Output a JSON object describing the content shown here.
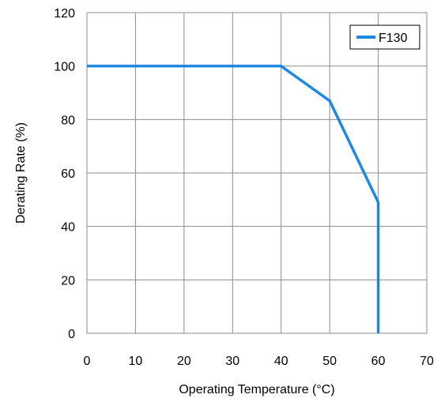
{
  "chart_data": {
    "type": "line",
    "xlabel": "Operating Temperature (°C)",
    "ylabel": "Derating Rate (%)",
    "xlim": [
      0,
      70
    ],
    "ylim": [
      0,
      120
    ],
    "x_ticks": [
      0,
      10,
      20,
      30,
      40,
      50,
      60,
      70
    ],
    "y_ticks": [
      0,
      20,
      40,
      60,
      80,
      100,
      120
    ],
    "grid": true,
    "legend_position": "top-right",
    "series": [
      {
        "name": "F130",
        "color": "#1e88e5",
        "x": [
          0,
          40,
          50,
          60,
          60
        ],
        "y": [
          100,
          100,
          87,
          49,
          0
        ]
      }
    ]
  }
}
